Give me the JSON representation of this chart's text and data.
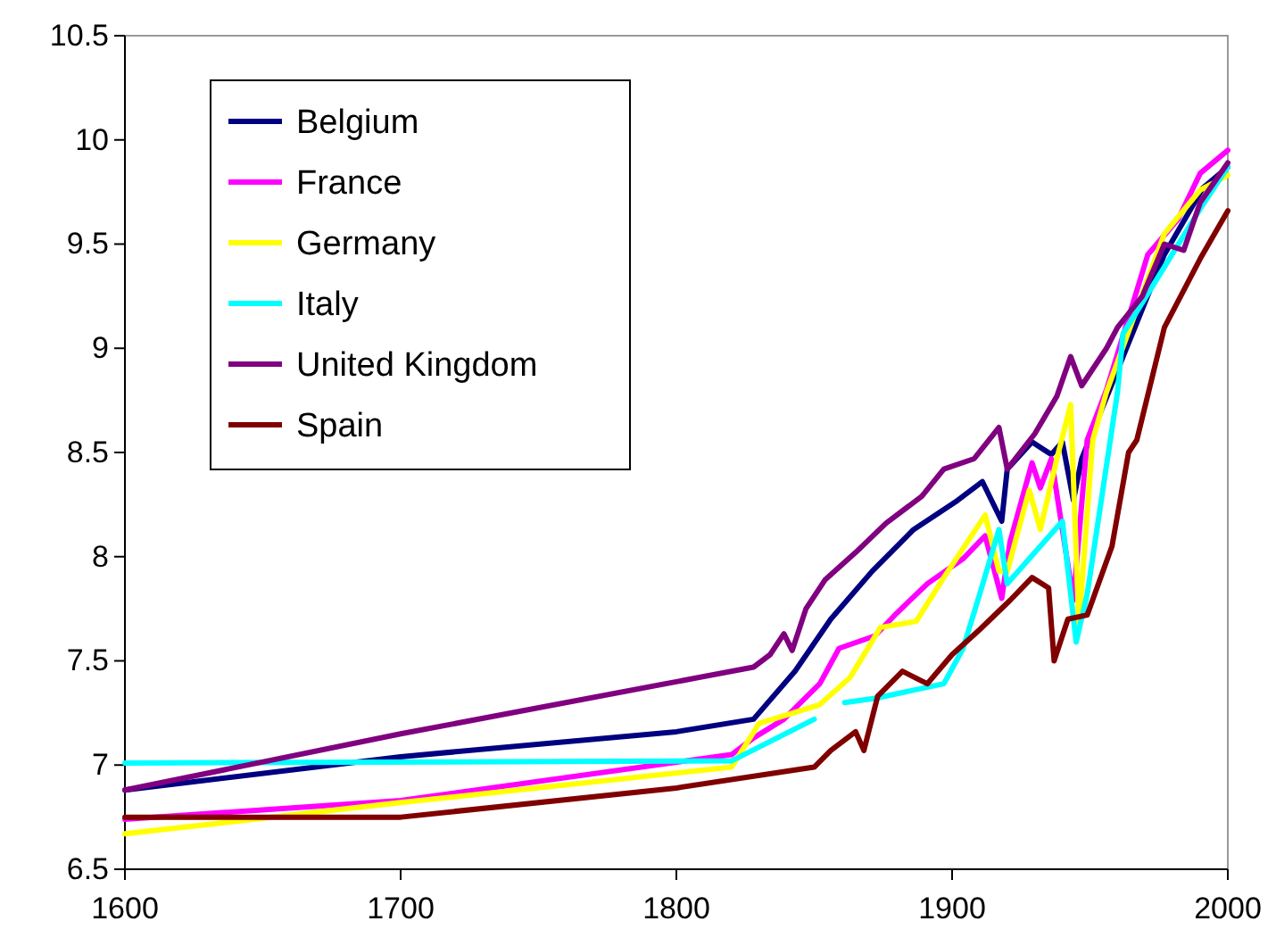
{
  "chart_data": {
    "type": "line",
    "xlim": [
      1600,
      2000
    ],
    "xticks": [
      1600,
      1700,
      1800,
      1900,
      2000
    ],
    "ylim": [
      6.5,
      10.5
    ],
    "yticks": [
      6.5,
      7,
      7.5,
      8,
      8.5,
      9,
      9.5,
      10,
      10.5
    ],
    "grid": false,
    "legend": "top left",
    "marker": "none",
    "line_style": "solid",
    "series": [
      {
        "name": "Belgium",
        "color": "#000080",
        "x": [
          1600,
          1700,
          1800,
          1828,
          1843,
          1856,
          1871,
          1886,
          1902,
          1911,
          1918,
          1920,
          1929,
          1936,
          1940,
          1944,
          1947,
          1977,
          1991,
          2000
        ],
        "values": [
          6.88,
          7.04,
          7.16,
          7.22,
          7.45,
          7.7,
          7.93,
          8.13,
          8.27,
          8.36,
          8.17,
          8.42,
          8.55,
          8.49,
          8.55,
          8.27,
          8.47,
          9.45,
          9.77,
          9.87
        ]
      },
      {
        "name": "France",
        "color": "#ff00ff",
        "x": [
          1600,
          1700,
          1820,
          1828,
          1839,
          1852,
          1859,
          1872,
          1880,
          1891,
          1904,
          1912,
          1918,
          1921,
          1929,
          1932,
          1936,
          1944,
          1949,
          1956,
          1971,
          1982,
          1990,
          2000
        ],
        "values": [
          6.74,
          6.83,
          7.05,
          7.13,
          7.22,
          7.39,
          7.56,
          7.62,
          7.73,
          7.87,
          7.99,
          8.1,
          7.8,
          8.07,
          8.45,
          8.33,
          8.47,
          7.79,
          8.56,
          8.8,
          9.45,
          9.62,
          9.84,
          9.95
        ]
      },
      {
        "name": "Germany",
        "color": "#ffff00",
        "x": [
          1600,
          1700,
          1820,
          1830,
          1852,
          1863,
          1874,
          1887,
          1897,
          1912,
          1917,
          1920,
          1928,
          1932,
          1938,
          1943,
          1946,
          1951,
          1956,
          1977,
          1990,
          2000
        ],
        "values": [
          6.67,
          6.82,
          6.99,
          7.2,
          7.29,
          7.42,
          7.66,
          7.69,
          7.9,
          8.2,
          7.93,
          7.93,
          8.32,
          8.13,
          8.47,
          8.73,
          7.67,
          8.56,
          8.79,
          9.55,
          9.76,
          9.83
        ]
      },
      {
        "name": "Italy",
        "color": "#00ffff",
        "x": [
          1600,
          1820,
          1850,
          1855,
          1861,
          1872,
          1897,
          1904,
          1910,
          1917,
          1920,
          1930,
          1940,
          1945,
          1949,
          1960,
          1962,
          1977,
          1990,
          2000
        ],
        "values": [
          7.01,
          7.02,
          7.22,
          null,
          7.3,
          7.32,
          7.39,
          7.56,
          7.82,
          8.13,
          7.87,
          8.02,
          8.17,
          7.59,
          7.82,
          8.79,
          9.07,
          9.39,
          9.67,
          9.87
        ]
      },
      {
        "name": "United Kingdom",
        "color": "#800080",
        "x": [
          1600,
          1700,
          1800,
          1828,
          1834,
          1839,
          1842,
          1847,
          1854,
          1865,
          1876,
          1889,
          1897,
          1908,
          1917,
          1920,
          1930,
          1938,
          1943,
          1947,
          1956,
          1960,
          1969,
          1977,
          1984,
          1990,
          2000
        ],
        "values": [
          6.88,
          7.15,
          7.4,
          7.47,
          7.53,
          7.63,
          7.55,
          7.75,
          7.89,
          8.02,
          8.16,
          8.29,
          8.42,
          8.47,
          8.62,
          8.42,
          8.59,
          8.77,
          8.96,
          8.82,
          9.0,
          9.1,
          9.25,
          9.5,
          9.47,
          9.7,
          9.89
        ]
      },
      {
        "name": "Spain",
        "color": "#800000",
        "x": [
          1600,
          1700,
          1800,
          1850,
          1856,
          1865,
          1868,
          1873,
          1882,
          1891,
          1900,
          1910,
          1921,
          1929,
          1935,
          1937,
          1942,
          1949,
          1958,
          1964,
          1967,
          1977,
          1990,
          2000
        ],
        "values": [
          6.75,
          6.75,
          6.89,
          6.99,
          7.07,
          7.16,
          7.07,
          7.33,
          7.45,
          7.39,
          7.53,
          7.65,
          7.79,
          7.9,
          7.85,
          7.5,
          7.7,
          7.72,
          8.05,
          8.5,
          8.56,
          9.1,
          9.43,
          9.66
        ]
      }
    ]
  }
}
